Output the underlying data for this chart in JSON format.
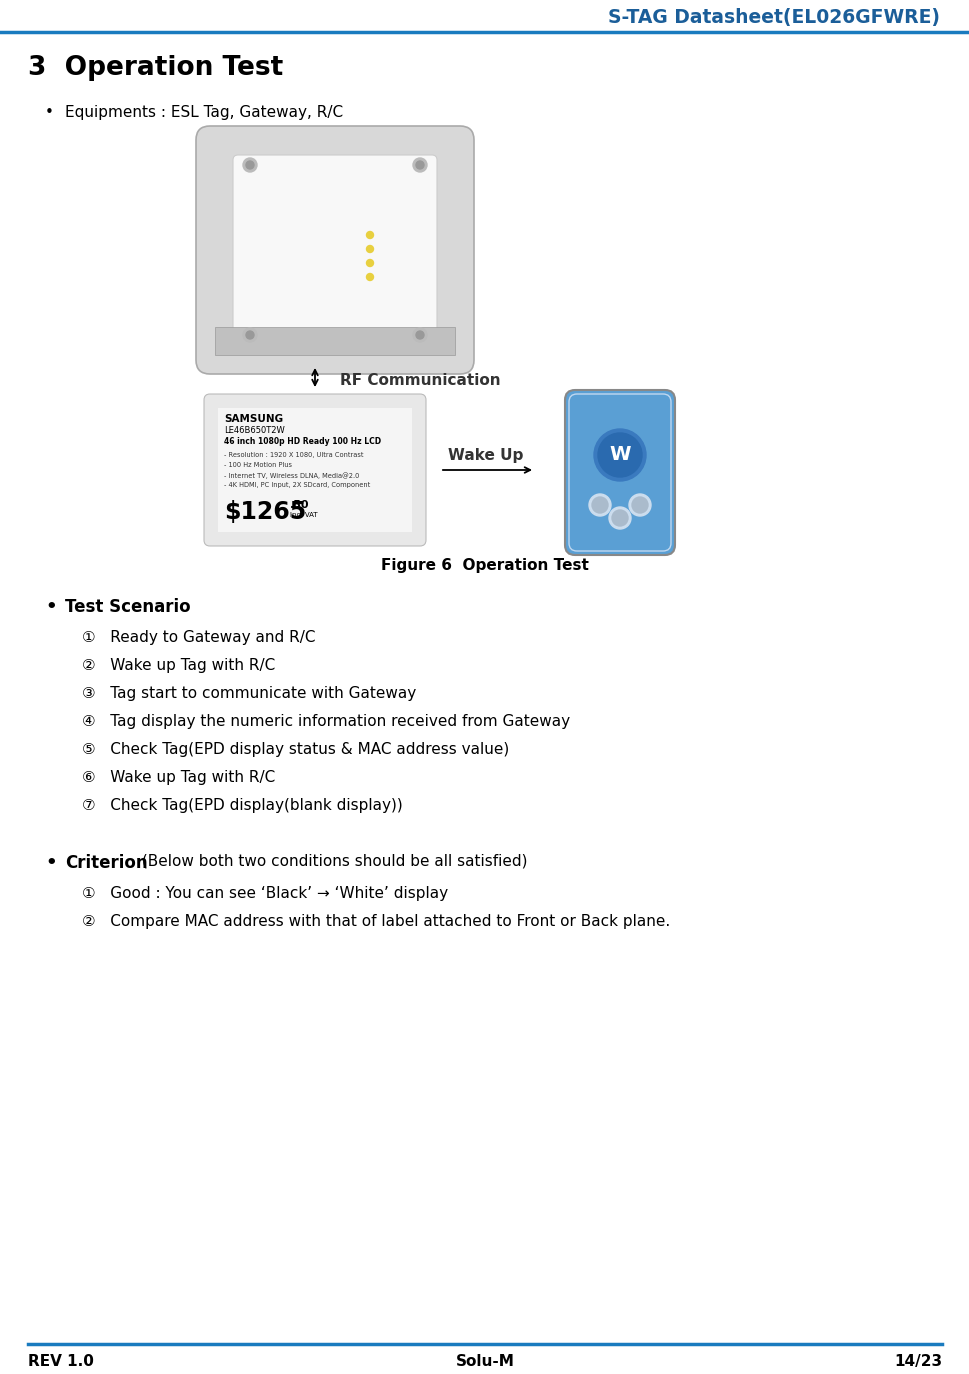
{
  "header_text": "S-TAG Datasheet(EL026GFWRE)",
  "header_color": "#1b5e99",
  "header_line_color": "#1a7bbf",
  "section_title": "3  Operation Test",
  "bullet_equip": "Equipments : ESL Tag, Gateway, R/C",
  "figure_caption": "Figure 6  Operation Test",
  "bullet_scenario_label": "Test Scenario",
  "scenario_items": [
    "①   Ready to Gateway and R/C",
    "②   Wake up Tag with R/C",
    "③   Tag start to communicate with Gateway",
    "④   Tag display the numeric information received from Gateway",
    "⑤   Check Tag(EPD display status & MAC address value)",
    "⑥   Wake up Tag with R/C",
    "⑦   Check Tag(EPD display(blank display))"
  ],
  "bullet_criterion_label": "Criterion",
  "criterion_intro": " (Below both two conditions should be all satisfied)",
  "criterion_items": [
    "①   Good : You can see ‘Black’ → ‘White’ display",
    "②   Compare MAC address with that of label attached to Front or Back plane."
  ],
  "footer_left": "REV 1.0",
  "footer_center": "Solu-M",
  "footer_right": "14/23",
  "footer_line_color": "#1a7bbf",
  "bg_color": "#ffffff"
}
